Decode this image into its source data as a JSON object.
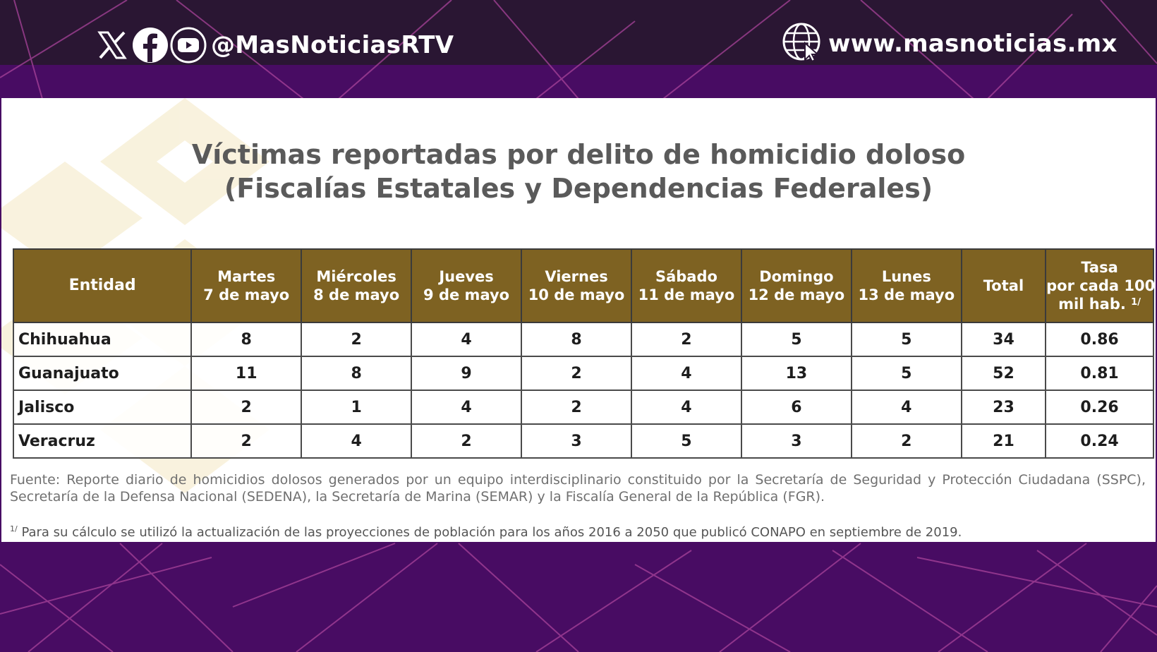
{
  "header": {
    "social_icons": [
      "x-icon",
      "facebook-icon",
      "youtube-icon"
    ],
    "handle": "@MasNoticiasRTV",
    "website_icon": "globe-cursor-icon",
    "website": "www.masnoticias.mx"
  },
  "card": {
    "title_line1": "Víctimas reportadas por delito de homicidio doloso",
    "title_line2": "(Fiscalías Estatales y Dependencias Federales)",
    "table": {
      "headers": [
        {
          "line1": "Entidad",
          "line2": ""
        },
        {
          "line1": "Martes",
          "line2": "7 de mayo"
        },
        {
          "line1": "Miércoles",
          "line2": "8 de mayo"
        },
        {
          "line1": "Jueves",
          "line2": "9 de mayo"
        },
        {
          "line1": "Viernes",
          "line2": "10 de mayo"
        },
        {
          "line1": "Sábado",
          "line2": "11 de mayo"
        },
        {
          "line1": "Domingo",
          "line2": "12 de mayo"
        },
        {
          "line1": "Lunes",
          "line2": "13 de mayo"
        },
        {
          "line1": "Total",
          "line2": ""
        },
        {
          "line1": "Tasa",
          "line2": "por cada 100",
          "line3": "mil hab.",
          "note": "1/"
        }
      ],
      "rows": [
        {
          "entidad": "Chihuahua",
          "values": [
            "8",
            "2",
            "4",
            "8",
            "2",
            "5",
            "5"
          ],
          "total": "34",
          "tasa": "0.86"
        },
        {
          "entidad": "Guanajuato",
          "values": [
            "11",
            "8",
            "9",
            "2",
            "4",
            "13",
            "5"
          ],
          "total": "52",
          "tasa": "0.81"
        },
        {
          "entidad": "Jalisco",
          "values": [
            "2",
            "1",
            "4",
            "2",
            "4",
            "6",
            "4"
          ],
          "total": "23",
          "tasa": "0.26"
        },
        {
          "entidad": "Veracruz",
          "values": [
            "2",
            "4",
            "2",
            "3",
            "5",
            "3",
            "2"
          ],
          "total": "21",
          "tasa": "0.24"
        }
      ]
    },
    "source": "Fuente: Reporte diario de homicidios dolosos generados por un equipo interdisciplinario constituido por la Secretaría de Seguridad y Protección Ciudadana (SSPC), Secretaría de la Defensa Nacional (SEDENA), la Secretaría de Marina (SEMAR) y la Fiscalía General de la República (FGR).",
    "footnote_mark": "1/",
    "footnote": " Para su cálculo se utilizó la actualización de las proyecciones de población para los años 2016 a 2050 que publicó CONAPO en septiembre de 2019."
  },
  "colors": {
    "background_purple": "#480c63",
    "top_bar": "#2a1633",
    "table_header_gold": "#7e6222",
    "line_accent": "#b0469a"
  }
}
